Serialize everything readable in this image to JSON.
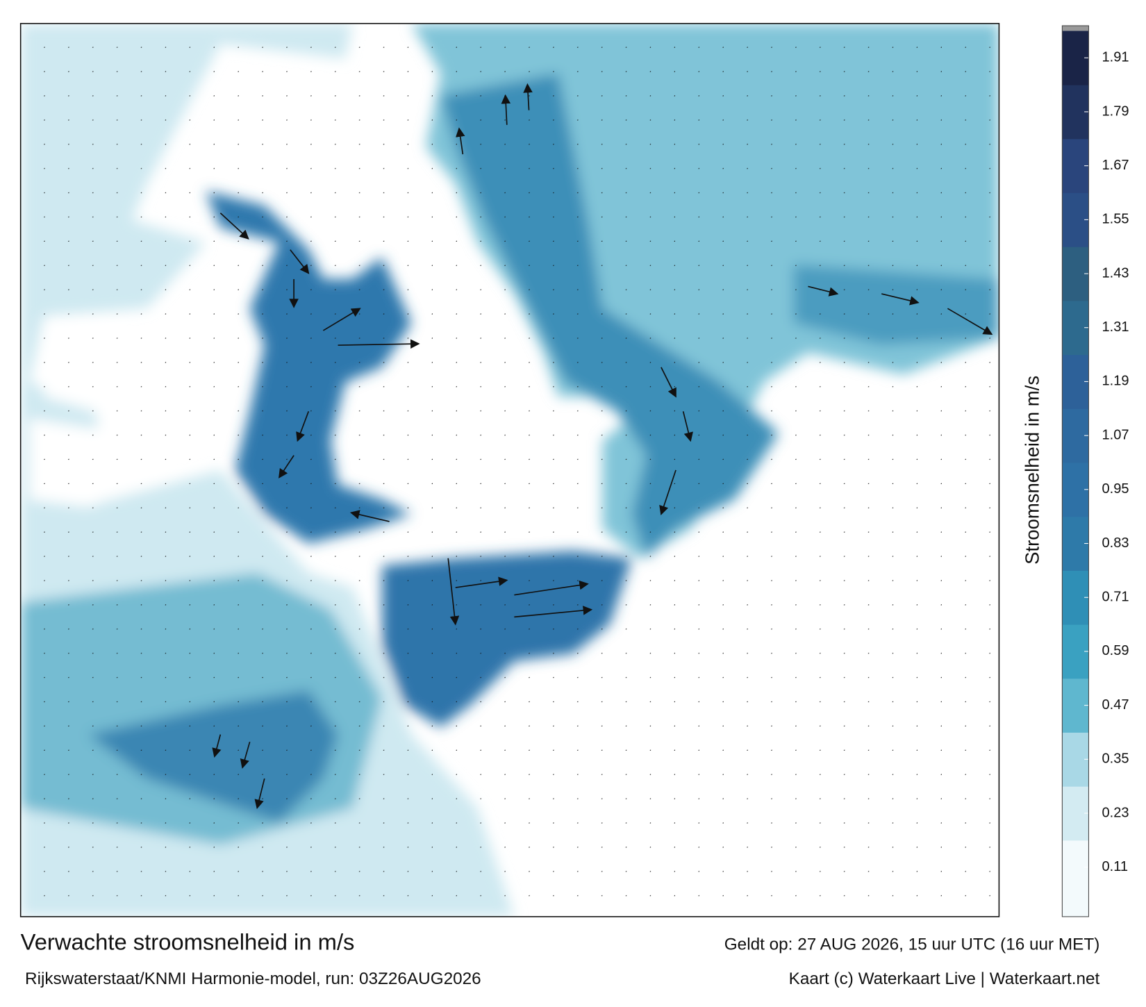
{
  "map": {
    "title": "Verwachte stroomsnelheid in m/s",
    "subtitle": "Rijkswaterstaat/KNMI Harmonie-model, run: 03Z26AUG2026",
    "valid_time": "Geldt op: 27 AUG 2026, 15 uur UTC (16 uur MET)",
    "credit": "Kaart (c) Waterkaart Live | Waterkaart.net"
  },
  "colorbar": {
    "label": "Stroomsnelheid in m/s",
    "range": [
      0,
      1.97
    ],
    "ticks": [
      0.11,
      0.23,
      0.35,
      0.47,
      0.59,
      0.71,
      0.83,
      0.95,
      1.07,
      1.19,
      1.31,
      1.43,
      1.55,
      1.67,
      1.79,
      1.91
    ],
    "colors": [
      "#f3fafc",
      "#d3ebf2",
      "#a9d8e6",
      "#5fb7cf",
      "#3aa1c1",
      "#2f8fb6",
      "#2e7aa9",
      "#2e71a6",
      "#2e6aa0",
      "#2d6199",
      "#2d6a8e",
      "#2d5f80",
      "#2b4f86",
      "#2a457c",
      "#21335e",
      "#1a2447",
      "#141a35"
    ]
  }
}
